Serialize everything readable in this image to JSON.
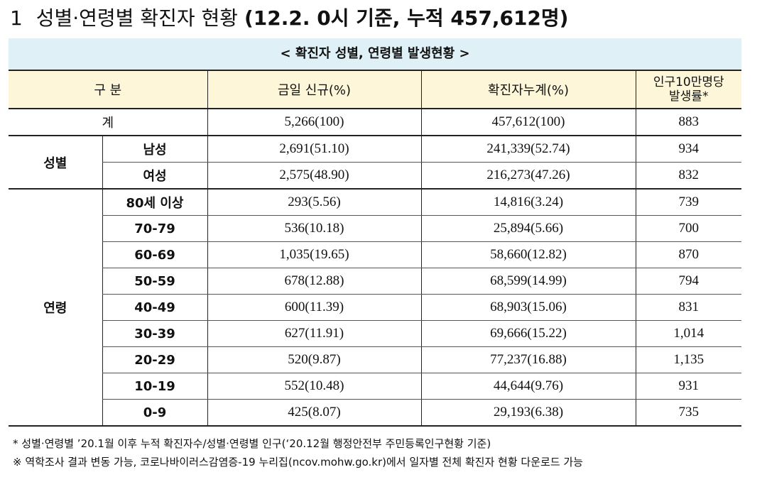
{
  "heading": {
    "number": "1",
    "title_plain": "성별·연령별 확진자 현황",
    "title_bold": "(12.2. 0시 기준, 누적 457,612명)"
  },
  "table": {
    "caption": "< 확진자 성별, 연령별 발생현황 >",
    "headers": {
      "category": "구 분",
      "new_today": "금일 신규(%)",
      "cumulative": "확진자누계(%)",
      "rate_line1": "인구10만명당",
      "rate_line2": "발생률*"
    },
    "total": {
      "label": "계",
      "new": "5,266(100)",
      "cum": "457,612(100)",
      "rate": "883"
    },
    "sex_group": "성별",
    "sex_rows": [
      {
        "label": "남성",
        "new": "2,691(51.10)",
        "cum": "241,339(52.74)",
        "rate": "934"
      },
      {
        "label": "여성",
        "new": "2,575(48.90)",
        "cum": "216,273(47.26)",
        "rate": "832"
      }
    ],
    "age_group": "연령",
    "age_rows": [
      {
        "label": "80세 이상",
        "new": "293(5.56)",
        "cum": "14,816(3.24)",
        "rate": "739"
      },
      {
        "label": "70-79",
        "new": "536(10.18)",
        "cum": "25,894(5.66)",
        "rate": "700"
      },
      {
        "label": "60-69",
        "new": "1,035(19.65)",
        "cum": "58,660(12.82)",
        "rate": "870"
      },
      {
        "label": "50-59",
        "new": "678(12.88)",
        "cum": "68,599(14.99)",
        "rate": "794"
      },
      {
        "label": "40-49",
        "new": "600(11.39)",
        "cum": "68,903(15.06)",
        "rate": "831"
      },
      {
        "label": "30-39",
        "new": "627(11.91)",
        "cum": "69,666(15.22)",
        "rate": "1,014"
      },
      {
        "label": "20-29",
        "new": "520(9.87)",
        "cum": "77,237(16.88)",
        "rate": "1,135"
      },
      {
        "label": "10-19",
        "new": "552(10.48)",
        "cum": "44,644(9.76)",
        "rate": "931"
      },
      {
        "label": "0-9",
        "new": "425(8.07)",
        "cum": "29,193(6.38)",
        "rate": "735"
      }
    ]
  },
  "notes": [
    "* 성별·연령별 ’20.1월 이후 누적 확진자수/성별·연령별 인구(‘20.12월 행정안전부 주민등록인구현황 기준)",
    "※ 역학조사 결과 변동 가능, 코로나바이러스감염증-19 누리집(ncov.mohw.go.kr)에서 일자별 전체 확진자 현황 다운로드 가능"
  ]
}
